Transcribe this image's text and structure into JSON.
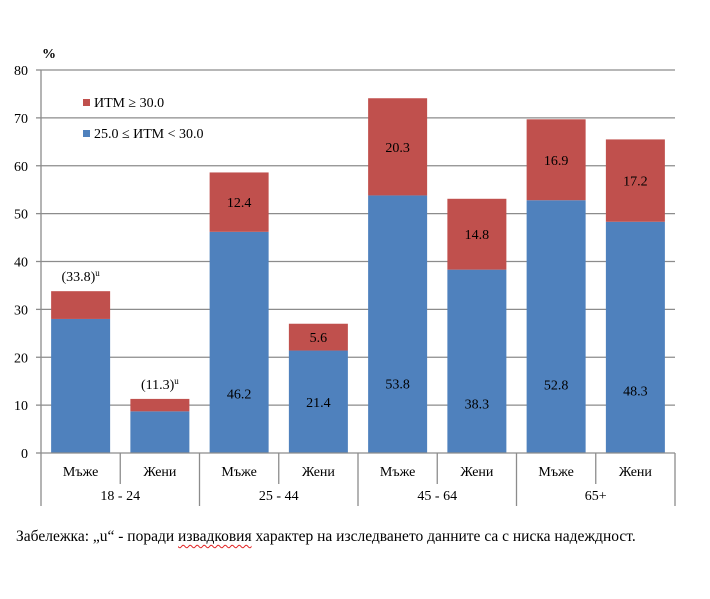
{
  "chart_data": {
    "type": "bar",
    "stacked": true,
    "ylabel": "%",
    "ylim": [
      0,
      80
    ],
    "yticks": [
      0,
      10,
      20,
      30,
      40,
      50,
      60,
      70,
      80
    ],
    "grid": true,
    "legend_position": "top-left",
    "groups": [
      "18 - 24",
      "25 - 44",
      "45 - 64",
      "65+"
    ],
    "subcategories": [
      "Мъже",
      "Жени",
      "Мъже",
      "Жени",
      "Мъже",
      "Жени",
      "Мъже",
      "Жени"
    ],
    "series": [
      {
        "name": "25.0 ≤ ИТМ < 30.0",
        "color": "#4F81BD",
        "values": [
          28.0,
          8.7,
          46.2,
          21.4,
          53.8,
          38.3,
          52.8,
          48.3
        ],
        "labels": [
          "",
          "",
          "46.2",
          "21.4",
          "53.8",
          "38.3",
          "52.8",
          "48.3"
        ]
      },
      {
        "name": "ИТМ ≥ 30.0",
        "color": "#C0504D",
        "values": [
          5.8,
          2.6,
          12.4,
          5.6,
          20.3,
          14.8,
          16.9,
          17.2
        ],
        "labels": [
          "",
          "",
          "12.4",
          "5.6",
          "20.3",
          "14.8",
          "16.9",
          "17.2"
        ]
      }
    ],
    "annotations": [
      "(33.8)",
      "(11.3)",
      "",
      "",
      "",
      "",
      "",
      ""
    ],
    "annotation_superscript": "u",
    "legend": [
      "ИТМ ≥ 30.0",
      "25.0 ≤ ИТМ < 30.0"
    ]
  },
  "note": {
    "prefix": "Забележка: „u“ - поради ",
    "misspelled": "извадковия",
    "suffix": " характер на изследването данните са с ниска надеждност."
  }
}
